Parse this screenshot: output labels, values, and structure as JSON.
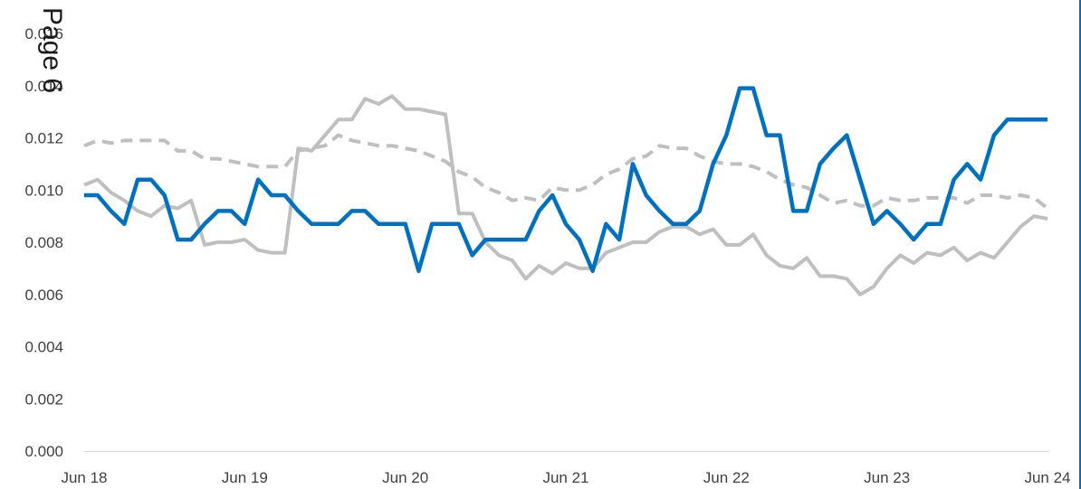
{
  "page_label": "Page 6",
  "colors": {
    "blue_series": "#0070c0",
    "gray_solid_series": "#bfbfbf",
    "gray_dashed_series": "#bfbfbf",
    "axis": "#d9d9d9",
    "text": "#404040",
    "right_edge": "#0070c0"
  },
  "chart_data": {
    "type": "line",
    "title": "",
    "xlabel": "",
    "ylabel": "",
    "x_axis_type": "date",
    "xlim": [
      "Jun 18",
      "Jun 24"
    ],
    "ylim": [
      0.0,
      0.016
    ],
    "x_tick_labels": [
      "Jun 18",
      "Jun 19",
      "Jun 20",
      "Jun 21",
      "Jun 22",
      "Jun 23",
      "Jun 24"
    ],
    "y_tick_labels": [
      "0.000",
      "0.002",
      "0.004",
      "0.006",
      "0.008",
      "0.010",
      "0.012",
      "0.014",
      "0.016"
    ],
    "y_ticks": [
      0.0,
      0.002,
      0.004,
      0.006,
      0.008,
      0.01,
      0.012,
      0.014,
      0.016
    ],
    "grid": false,
    "legend": "none",
    "series": [
      {
        "style": "solid-blue",
        "points": [
          [
            "2018-06",
            0.0098
          ],
          [
            "2018-07",
            0.0098
          ],
          [
            "2018-08",
            0.0092
          ],
          [
            "2018-09",
            0.0087
          ],
          [
            "2018-10",
            0.0104
          ],
          [
            "2018-11",
            0.0104
          ],
          [
            "2018-12",
            0.0098
          ],
          [
            "2019-01",
            0.0081
          ],
          [
            "2019-02",
            0.0081
          ],
          [
            "2019-03",
            0.0087
          ],
          [
            "2019-04",
            0.0092
          ],
          [
            "2019-05",
            0.0092
          ],
          [
            "2019-06",
            0.0087
          ],
          [
            "2019-07",
            0.0104
          ],
          [
            "2019-08",
            0.0098
          ],
          [
            "2019-09",
            0.0098
          ],
          [
            "2019-10",
            0.0092
          ],
          [
            "2019-11",
            0.0087
          ],
          [
            "2019-12",
            0.0087
          ],
          [
            "2020-01",
            0.0087
          ],
          [
            "2020-02",
            0.0092
          ],
          [
            "2020-03",
            0.0092
          ],
          [
            "2020-04",
            0.0087
          ],
          [
            "2020-05",
            0.0087
          ],
          [
            "2020-06",
            0.0087
          ],
          [
            "2020-07",
            0.0069
          ],
          [
            "2020-08",
            0.0087
          ],
          [
            "2020-09",
            0.0087
          ],
          [
            "2020-10",
            0.0087
          ],
          [
            "2020-11",
            0.0075
          ],
          [
            "2020-12",
            0.0081
          ],
          [
            "2021-01",
            0.0081
          ],
          [
            "2021-02",
            0.0081
          ],
          [
            "2021-03",
            0.0081
          ],
          [
            "2021-04",
            0.0092
          ],
          [
            "2021-05",
            0.0098
          ],
          [
            "2021-06",
            0.0087
          ],
          [
            "2021-07",
            0.0081
          ],
          [
            "2021-08",
            0.0069
          ],
          [
            "2021-09",
            0.0087
          ],
          [
            "2021-10",
            0.0081
          ],
          [
            "2021-11",
            0.011
          ],
          [
            "2021-12",
            0.0098
          ],
          [
            "2022-01",
            0.0092
          ],
          [
            "2022-02",
            0.0087
          ],
          [
            "2022-03",
            0.0087
          ],
          [
            "2022-04",
            0.0092
          ],
          [
            "2022-05",
            0.011
          ],
          [
            "2022-06",
            0.0121
          ],
          [
            "2022-07",
            0.0139
          ],
          [
            "2022-08",
            0.0139
          ],
          [
            "2022-09",
            0.0121
          ],
          [
            "2022-10",
            0.0121
          ],
          [
            "2022-11",
            0.0092
          ],
          [
            "2022-12",
            0.0092
          ],
          [
            "2023-01",
            0.011
          ],
          [
            "2023-02",
            0.0116
          ],
          [
            "2023-03",
            0.0121
          ],
          [
            "2023-04",
            0.0104
          ],
          [
            "2023-05",
            0.0087
          ],
          [
            "2023-06",
            0.0092
          ],
          [
            "2023-07",
            0.0087
          ],
          [
            "2023-08",
            0.0081
          ],
          [
            "2023-09",
            0.0087
          ],
          [
            "2023-10",
            0.0087
          ],
          [
            "2023-11",
            0.0104
          ],
          [
            "2023-12",
            0.011
          ],
          [
            "2024-01",
            0.0104
          ],
          [
            "2024-02",
            0.0121
          ],
          [
            "2024-03",
            0.0127
          ],
          [
            "2024-04",
            0.0127
          ],
          [
            "2024-05",
            0.0127
          ],
          [
            "2024-06",
            0.0127
          ]
        ]
      },
      {
        "style": "solid-gray",
        "points": [
          [
            "2018-06",
            0.0102
          ],
          [
            "2018-07",
            0.0104
          ],
          [
            "2018-08",
            0.0099
          ],
          [
            "2018-09",
            0.0096
          ],
          [
            "2018-10",
            0.0092
          ],
          [
            "2018-11",
            0.009
          ],
          [
            "2018-12",
            0.0094
          ],
          [
            "2019-01",
            0.0093
          ],
          [
            "2019-02",
            0.0096
          ],
          [
            "2019-03",
            0.0079
          ],
          [
            "2019-04",
            0.008
          ],
          [
            "2019-05",
            0.008
          ],
          [
            "2019-06",
            0.0081
          ],
          [
            "2019-07",
            0.0077
          ],
          [
            "2019-08",
            0.0076
          ],
          [
            "2019-09",
            0.0076
          ],
          [
            "2019-10",
            0.0116
          ],
          [
            "2019-11",
            0.0115
          ],
          [
            "2019-12",
            0.0121
          ],
          [
            "2020-01",
            0.0127
          ],
          [
            "2020-02",
            0.0127
          ],
          [
            "2020-03",
            0.0135
          ],
          [
            "2020-04",
            0.0133
          ],
          [
            "2020-05",
            0.0136
          ],
          [
            "2020-06",
            0.0131
          ],
          [
            "2020-07",
            0.0131
          ],
          [
            "2020-08",
            0.013
          ],
          [
            "2020-09",
            0.0129
          ],
          [
            "2020-10",
            0.0091
          ],
          [
            "2020-11",
            0.0091
          ],
          [
            "2020-12",
            0.008
          ],
          [
            "2021-01",
            0.0075
          ],
          [
            "2021-02",
            0.0073
          ],
          [
            "2021-03",
            0.0066
          ],
          [
            "2021-04",
            0.0071
          ],
          [
            "2021-05",
            0.0068
          ],
          [
            "2021-06",
            0.0072
          ],
          [
            "2021-07",
            0.007
          ],
          [
            "2021-08",
            0.007
          ],
          [
            "2021-09",
            0.0076
          ],
          [
            "2021-10",
            0.0078
          ],
          [
            "2021-11",
            0.008
          ],
          [
            "2021-12",
            0.008
          ],
          [
            "2022-01",
            0.0084
          ],
          [
            "2022-02",
            0.0086
          ],
          [
            "2022-03",
            0.0086
          ],
          [
            "2022-04",
            0.0083
          ],
          [
            "2022-05",
            0.0085
          ],
          [
            "2022-06",
            0.0079
          ],
          [
            "2022-07",
            0.0079
          ],
          [
            "2022-08",
            0.0083
          ],
          [
            "2022-09",
            0.0075
          ],
          [
            "2022-10",
            0.0071
          ],
          [
            "2022-11",
            0.007
          ],
          [
            "2022-12",
            0.0074
          ],
          [
            "2023-01",
            0.0067
          ],
          [
            "2023-02",
            0.0067
          ],
          [
            "2023-03",
            0.0066
          ],
          [
            "2023-04",
            0.006
          ],
          [
            "2023-05",
            0.0063
          ],
          [
            "2023-06",
            0.007
          ],
          [
            "2023-07",
            0.0075
          ],
          [
            "2023-08",
            0.0072
          ],
          [
            "2023-09",
            0.0076
          ],
          [
            "2023-10",
            0.0075
          ],
          [
            "2023-11",
            0.0078
          ],
          [
            "2023-12",
            0.0073
          ],
          [
            "2024-01",
            0.0076
          ],
          [
            "2024-02",
            0.0074
          ],
          [
            "2024-03",
            0.008
          ],
          [
            "2024-04",
            0.0086
          ],
          [
            "2024-05",
            0.009
          ],
          [
            "2024-06",
            0.0089
          ]
        ]
      },
      {
        "style": "dashed-gray",
        "points": [
          [
            "2018-06",
            0.0117
          ],
          [
            "2018-07",
            0.0119
          ],
          [
            "2018-08",
            0.0118
          ],
          [
            "2018-09",
            0.0119
          ],
          [
            "2018-10",
            0.0119
          ],
          [
            "2018-11",
            0.0119
          ],
          [
            "2018-12",
            0.0119
          ],
          [
            "2019-01",
            0.0115
          ],
          [
            "2019-02",
            0.0115
          ],
          [
            "2019-03",
            0.0112
          ],
          [
            "2019-04",
            0.0112
          ],
          [
            "2019-05",
            0.0111
          ],
          [
            "2019-06",
            0.011
          ],
          [
            "2019-07",
            0.0109
          ],
          [
            "2019-08",
            0.0109
          ],
          [
            "2019-09",
            0.0109
          ],
          [
            "2019-10",
            0.0115
          ],
          [
            "2019-11",
            0.0116
          ],
          [
            "2019-12",
            0.0117
          ],
          [
            "2020-01",
            0.0121
          ],
          [
            "2020-02",
            0.0119
          ],
          [
            "2020-03",
            0.0118
          ],
          [
            "2020-04",
            0.0117
          ],
          [
            "2020-05",
            0.0117
          ],
          [
            "2020-06",
            0.0116
          ],
          [
            "2020-07",
            0.0115
          ],
          [
            "2020-08",
            0.0113
          ],
          [
            "2020-09",
            0.0111
          ],
          [
            "2020-10",
            0.0107
          ],
          [
            "2020-11",
            0.0105
          ],
          [
            "2020-12",
            0.0101
          ],
          [
            "2021-01",
            0.0099
          ],
          [
            "2021-02",
            0.0096
          ],
          [
            "2021-03",
            0.0097
          ],
          [
            "2021-04",
            0.0096
          ],
          [
            "2021-05",
            0.0101
          ],
          [
            "2021-06",
            0.01
          ],
          [
            "2021-07",
            0.01
          ],
          [
            "2021-08",
            0.0102
          ],
          [
            "2021-09",
            0.0106
          ],
          [
            "2021-10",
            0.0108
          ],
          [
            "2021-11",
            0.0112
          ],
          [
            "2021-12",
            0.0113
          ],
          [
            "2022-01",
            0.0117
          ],
          [
            "2022-02",
            0.0116
          ],
          [
            "2022-03",
            0.0116
          ],
          [
            "2022-04",
            0.0113
          ],
          [
            "2022-05",
            0.0111
          ],
          [
            "2022-06",
            0.011
          ],
          [
            "2022-07",
            0.011
          ],
          [
            "2022-08",
            0.0109
          ],
          [
            "2022-09",
            0.0107
          ],
          [
            "2022-10",
            0.0104
          ],
          [
            "2022-11",
            0.0102
          ],
          [
            "2022-12",
            0.0101
          ],
          [
            "2023-01",
            0.0098
          ],
          [
            "2023-02",
            0.0095
          ],
          [
            "2023-03",
            0.0096
          ],
          [
            "2023-04",
            0.0094
          ],
          [
            "2023-05",
            0.0094
          ],
          [
            "2023-06",
            0.0097
          ],
          [
            "2023-07",
            0.0096
          ],
          [
            "2023-08",
            0.0096
          ],
          [
            "2023-09",
            0.0097
          ],
          [
            "2023-10",
            0.0097
          ],
          [
            "2023-11",
            0.0097
          ],
          [
            "2023-12",
            0.0095
          ],
          [
            "2024-01",
            0.0098
          ],
          [
            "2024-02",
            0.0098
          ],
          [
            "2024-03",
            0.0097
          ],
          [
            "2024-04",
            0.0098
          ],
          [
            "2024-05",
            0.0097
          ],
          [
            "2024-06",
            0.0093
          ]
        ]
      }
    ]
  }
}
